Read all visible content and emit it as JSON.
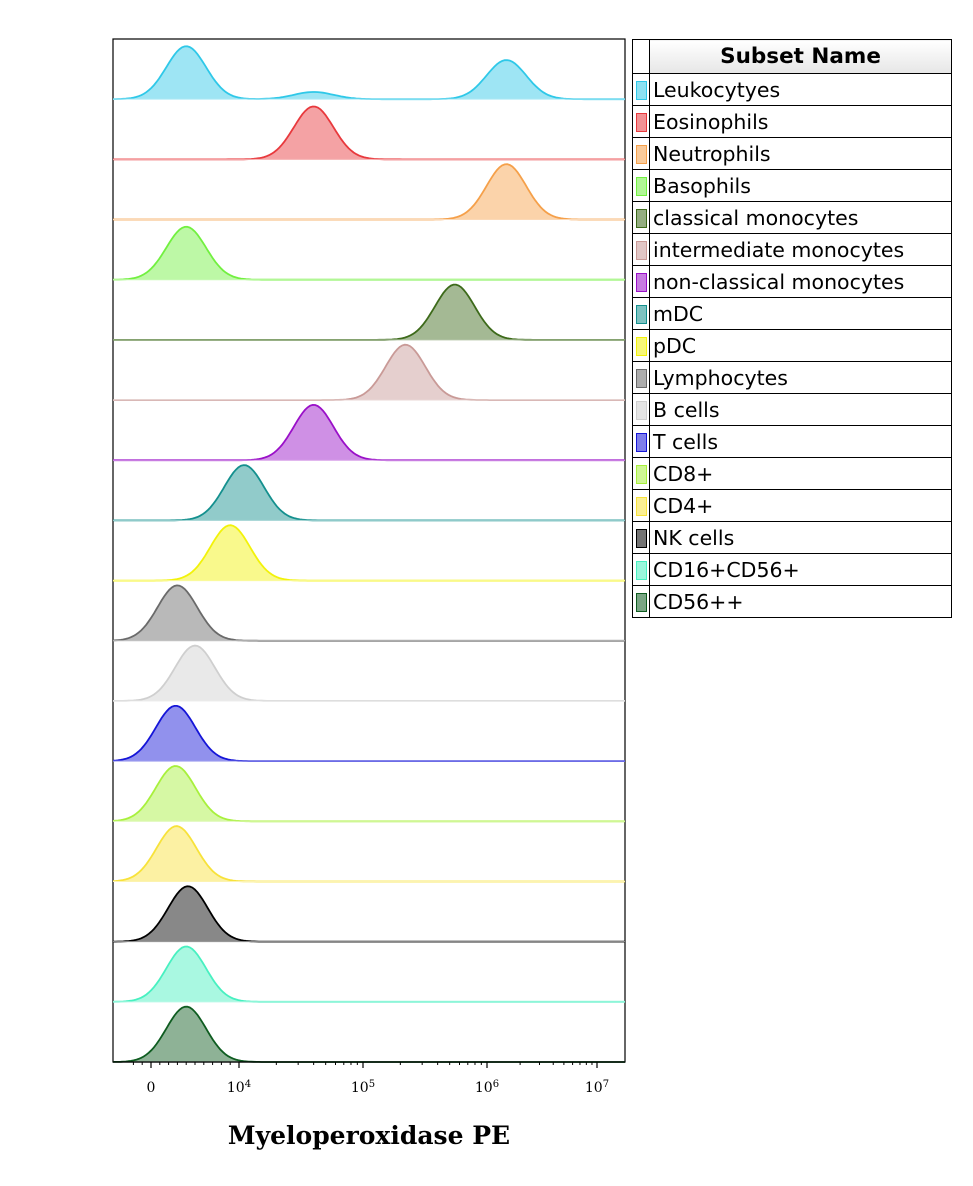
{
  "chart_data": {
    "type": "histogram-overlay",
    "x_label": "Myeloperoxidase PE",
    "x_scale": "biexponential",
    "x_ticks": [
      {
        "label": "0",
        "value": 0
      },
      {
        "label": "10^4",
        "value": 10000
      },
      {
        "label": "10^5",
        "value": 100000
      },
      {
        "label": "10^6",
        "value": 1000000
      },
      {
        "label": "10^7",
        "value": 10000000
      }
    ],
    "legend_title": "Subset Name",
    "series": [
      {
        "name": "Leukocytyes",
        "color": "#2fc8e8",
        "peaks": [
          {
            "value": 4000,
            "height": 0.88
          },
          {
            "value": 40000,
            "height": 0.12
          },
          {
            "value": 1500000,
            "height": 0.65
          }
        ]
      },
      {
        "name": "Eosinophils",
        "color": "#e8393d",
        "peaks": [
          {
            "value": 40000,
            "height": 0.88
          }
        ]
      },
      {
        "name": "Neutrophils",
        "color": "#f5a04a",
        "peaks": [
          {
            "value": 1500000,
            "height": 0.92
          }
        ]
      },
      {
        "name": "Basophils",
        "color": "#72f040",
        "peaks": [
          {
            "value": 4000,
            "height": 0.88
          }
        ]
      },
      {
        "name": "classical monocytes",
        "color": "#3d6a1a",
        "peaks": [
          {
            "value": 550000,
            "height": 0.92
          }
        ]
      },
      {
        "name": "intermediate monocytes",
        "color": "#c99a97",
        "peaks": [
          {
            "value": 220000,
            "height": 0.92
          }
        ]
      },
      {
        "name": "non-classical monocytes",
        "color": "#9a10c8",
        "peaks": [
          {
            "value": 40000,
            "height": 0.92
          }
        ]
      },
      {
        "name": "mDC",
        "color": "#14908e",
        "peaks": [
          {
            "value": 11000,
            "height": 0.92
          }
        ]
      },
      {
        "name": "pDC",
        "color": "#f2f20a",
        "peaks": [
          {
            "value": 9000,
            "height": 0.92
          }
        ]
      },
      {
        "name": "Lymphocytes",
        "color": "#6a6a6a",
        "peaks": [
          {
            "value": 3000,
            "height": 0.92
          }
        ]
      },
      {
        "name": "B cells",
        "color": "#cfcfcf",
        "peaks": [
          {
            "value": 5000,
            "height": 0.92
          }
        ]
      },
      {
        "name": "T cells",
        "color": "#1515d8",
        "peaks": [
          {
            "value": 2800,
            "height": 0.92
          }
        ]
      },
      {
        "name": "CD8+",
        "color": "#a8f03c",
        "peaks": [
          {
            "value": 2800,
            "height": 0.92
          }
        ]
      },
      {
        "name": "CD4+",
        "color": "#f7e23a",
        "peaks": [
          {
            "value": 2900,
            "height": 0.92
          }
        ]
      },
      {
        "name": "NK cells",
        "color": "#000000",
        "peaks": [
          {
            "value": 4200,
            "height": 0.92
          }
        ]
      },
      {
        "name": "CD16+CD56+",
        "color": "#48f0c0",
        "peaks": [
          {
            "value": 4000,
            "height": 0.92
          }
        ]
      },
      {
        "name": "CD56++",
        "color": "#0e5c20",
        "peaks": [
          {
            "value": 4000,
            "height": 0.92
          }
        ]
      }
    ]
  }
}
